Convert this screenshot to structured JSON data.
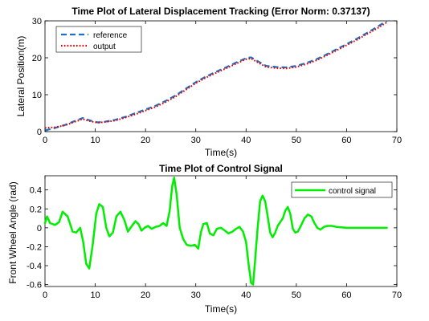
{
  "chart_data": [
    {
      "type": "line",
      "title": "Time Plot of Lateral Displacement Tracking (Error Norm: 0.37137)",
      "xlabel": "Time(s)",
      "ylabel": "Lateral Position(m)",
      "xlim": [
        0,
        70
      ],
      "ylim": [
        0,
        30
      ],
      "xticks": [
        "0",
        "10",
        "20",
        "30",
        "40",
        "50",
        "60",
        "70"
      ],
      "yticks": [
        "0",
        "10",
        "20",
        "30"
      ],
      "grid": false,
      "legend_position": "top-left",
      "series": [
        {
          "name": "reference",
          "color": "#1f6fc5",
          "style": "dashed",
          "x": [
            0,
            2,
            4,
            6,
            7.5,
            9,
            10.5,
            12,
            14,
            16,
            18,
            20,
            22,
            24,
            26,
            28,
            30,
            32,
            34,
            36,
            38,
            40,
            41,
            42,
            44,
            46,
            48,
            50,
            52,
            54,
            56,
            58,
            60,
            62,
            64,
            66,
            68
          ],
          "values": [
            0.3,
            1.0,
            1.8,
            2.9,
            3.7,
            3.0,
            2.5,
            2.7,
            3.2,
            4.0,
            5.0,
            6.0,
            7.0,
            8.3,
            9.8,
            11.6,
            13.4,
            14.9,
            16.2,
            17.4,
            18.7,
            19.9,
            20.1,
            19.3,
            17.8,
            17.5,
            17.4,
            17.8,
            18.6,
            19.6,
            20.9,
            22.3,
            23.7,
            25.1,
            26.7,
            28.3,
            30.0
          ]
        },
        {
          "name": "output",
          "color": "#e00000",
          "style": "dotted",
          "x": [
            0,
            2,
            4,
            6,
            7.5,
            9,
            10.5,
            12,
            14,
            16,
            18,
            20,
            22,
            24,
            26,
            28,
            30,
            32,
            34,
            36,
            38,
            40,
            41,
            42,
            44,
            46,
            48,
            50,
            52,
            54,
            56,
            58,
            60,
            62,
            64,
            66,
            68
          ],
          "values": [
            1.0,
            1.2,
            1.7,
            2.7,
            3.4,
            2.8,
            2.4,
            2.6,
            3.0,
            3.8,
            4.7,
            5.7,
            6.7,
            8.0,
            9.5,
            11.3,
            13.1,
            14.6,
            15.9,
            17.1,
            18.4,
            19.6,
            19.8,
            19.0,
            17.5,
            17.2,
            17.1,
            17.5,
            18.3,
            19.3,
            20.6,
            22.0,
            23.4,
            24.8,
            26.4,
            27.9,
            29.6
          ]
        }
      ]
    },
    {
      "type": "line",
      "title": "Time Plot of Control Signal",
      "xlabel": "Time(s)",
      "ylabel": "Front Wheel Angle (rad)",
      "xlim": [
        0,
        70
      ],
      "ylim": [
        -0.62,
        0.55
      ],
      "xticks": [
        "0",
        "10",
        "20",
        "30",
        "40",
        "50",
        "60",
        "70"
      ],
      "yticks": [
        "-0.6",
        "-0.4",
        "-0.2",
        "0",
        "0.2",
        "0.4"
      ],
      "ytick_values": [
        -0.6,
        -0.4,
        -0.2,
        0,
        0.2,
        0.4
      ],
      "grid": false,
      "legend_position": "top-right",
      "series": [
        {
          "name": "control signal",
          "color": "#00ee00",
          "style": "solid",
          "x": [
            0,
            0.4,
            1,
            2,
            2.8,
            3.5,
            4.5,
            5.5,
            6.2,
            7,
            7.6,
            8.2,
            8.8,
            9.5,
            10.2,
            10.8,
            11.5,
            12.2,
            12.8,
            13.5,
            14.2,
            15,
            15.8,
            16.5,
            17.3,
            18,
            18.6,
            19.2,
            19.8,
            20.5,
            21.2,
            22,
            22.8,
            23.5,
            24.2,
            24.8,
            25.3,
            25.7,
            26.2,
            26.8,
            27.5,
            28.2,
            29,
            29.8,
            30.5,
            31,
            31.5,
            32.2,
            32.8,
            33.5,
            34.2,
            35,
            35.8,
            36.5,
            37.3,
            38,
            38.7,
            39.4,
            40,
            40.5,
            41,
            41.4,
            41.8,
            42.3,
            42.8,
            43.3,
            43.8,
            44.3,
            44.8,
            45.3,
            45.8,
            46.3,
            46.8,
            47.3,
            47.8,
            48.3,
            48.8,
            49.3,
            49.8,
            50.3,
            50.9,
            51.6,
            52.3,
            53,
            53.6,
            54.2,
            54.8,
            55.5,
            56.2,
            57,
            58,
            60,
            62,
            64,
            66,
            68
          ],
          "values": [
            0.05,
            0.12,
            0.05,
            0.03,
            0.06,
            0.17,
            0.12,
            -0.04,
            -0.05,
            0.0,
            -0.15,
            -0.38,
            -0.43,
            -0.18,
            0.15,
            0.25,
            0.22,
            0.0,
            -0.09,
            -0.05,
            0.12,
            0.17,
            0.08,
            -0.04,
            0.02,
            0.07,
            0.04,
            -0.03,
            0.0,
            0.02,
            -0.01,
            0.01,
            0.02,
            0.05,
            0.02,
            0.18,
            0.44,
            0.53,
            0.35,
            0.0,
            -0.12,
            -0.18,
            -0.19,
            -0.18,
            -0.22,
            -0.05,
            0.04,
            0.05,
            -0.06,
            -0.08,
            -0.01,
            0.0,
            -0.03,
            -0.06,
            -0.04,
            -0.01,
            0.01,
            -0.04,
            -0.15,
            -0.38,
            -0.58,
            -0.6,
            -0.35,
            0.0,
            0.28,
            0.34,
            0.28,
            0.12,
            -0.05,
            -0.1,
            -0.05,
            0.02,
            0.06,
            0.1,
            0.18,
            0.22,
            0.15,
            -0.01,
            -0.05,
            -0.04,
            0.02,
            0.1,
            0.14,
            0.12,
            0.05,
            0.0,
            -0.02,
            0.01,
            0.02,
            0.02,
            0.01,
            0.0,
            0.0,
            0.0,
            0.0,
            0.0
          ]
        }
      ]
    }
  ]
}
